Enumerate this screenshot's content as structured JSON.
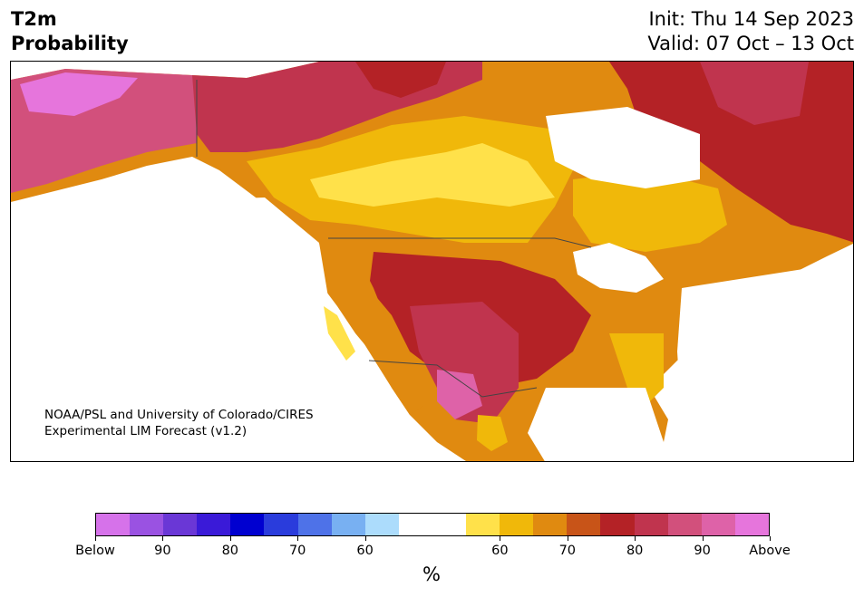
{
  "title": {
    "left_line1": "T2m",
    "left_line2": "Probability",
    "init": "Init: Thu 14 Sep 2023",
    "valid": "Valid: 07 Oct – 13 Oct"
  },
  "map": {
    "region": "North America",
    "credit_line1": "NOAA/PSL and University of Colorado/CIRES",
    "credit_line2": "Experimental LIM Forecast (v1.2)"
  },
  "colorbar": {
    "unit": "%",
    "colors": [
      "#d672ea",
      "#9a52e2",
      "#6a37d6",
      "#3a1ad8",
      "#0000d0",
      "#2a3cdc",
      "#4e72e8",
      "#78b0f2",
      "#acdcfc",
      "#ffffff",
      "#ffffff",
      "#ffe14a",
      "#f0b80a",
      "#e08a10",
      "#c85418",
      "#b42226",
      "#c0344e",
      "#d2507c",
      "#de62a8",
      "#e675dc"
    ],
    "tick_labels": [
      "Below",
      "90",
      "80",
      "70",
      "60",
      "60",
      "70",
      "80",
      "90",
      "Above"
    ]
  },
  "legend_colors": {
    "above_high": "#e675dc",
    "above_mid": "#c0344e",
    "warm": "#c85418",
    "light": "#f0b80a",
    "pale": "#ffe14a"
  }
}
